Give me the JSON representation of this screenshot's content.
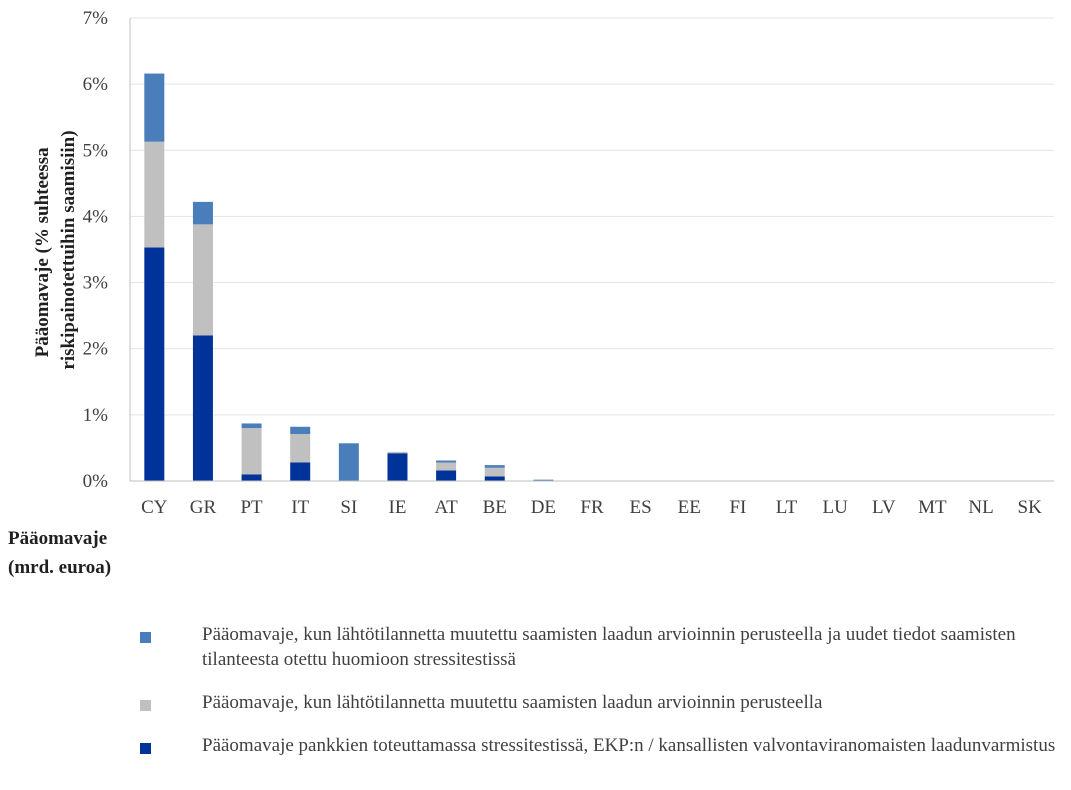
{
  "chart_data": {
    "type": "bar",
    "stacked": true,
    "categories": [
      "CY",
      "GR",
      "PT",
      "IT",
      "SI",
      "IE",
      "AT",
      "BE",
      "DE",
      "FR",
      "ES",
      "EE",
      "FI",
      "LT",
      "LU",
      "LV",
      "MT",
      "NL",
      "SK"
    ],
    "series": [
      {
        "name": "Pääomavaje pankkien toteuttamassa stressitestissä, EKP:n / kansallisten valvontaviranomaisten laadunvarmistus",
        "color": "#003399",
        "values": [
          3.53,
          2.2,
          0.1,
          0.28,
          0,
          0.42,
          0.16,
          0.07,
          0,
          0,
          0,
          0,
          0,
          0,
          0,
          0,
          0,
          0,
          0
        ]
      },
      {
        "name": "Pääomavaje, kun lähtötilannetta muutettu saamisten laadun arvioinnin perusteella",
        "color": "#c0c0c0",
        "values": [
          1.6,
          1.68,
          0.7,
          0.43,
          0,
          0.02,
          0.12,
          0.13,
          0.01,
          0,
          0,
          0,
          0,
          0,
          0,
          0,
          0,
          0,
          0
        ]
      },
      {
        "name": "Pääomavaje, kun lähtötilannetta muutettu saamisten laadun arvioinnin perusteella ja uudet tiedot saamisten tilanteesta otettu huomioon stressitestissä",
        "color": "#4a7ebb",
        "values": [
          1.03,
          0.34,
          0.07,
          0.11,
          0.57,
          0,
          0.03,
          0.04,
          0.01,
          0,
          0,
          0,
          0,
          0,
          0,
          0,
          0,
          0,
          0
        ]
      }
    ],
    "ylabel": "Pääomavaje (% suhteessa riskipainotettuihin saamisiin)",
    "ylabel_lines": [
      "Pääomavaje (% suhteessa",
      "riskipainotettuihin saamisiin)"
    ],
    "ylim": [
      0,
      7
    ],
    "yticks": [
      0,
      1,
      2,
      3,
      4,
      5,
      6,
      7
    ],
    "ytick_labels": [
      "0%",
      "1%",
      "2%",
      "3%",
      "4%",
      "5%",
      "6%",
      "7%"
    ],
    "grid": true,
    "legend_placement": "bottom",
    "legend_order": [
      2,
      1,
      0
    ]
  },
  "side_label": [
    "Pääomavaje",
    "(mrd. euroa)"
  ]
}
